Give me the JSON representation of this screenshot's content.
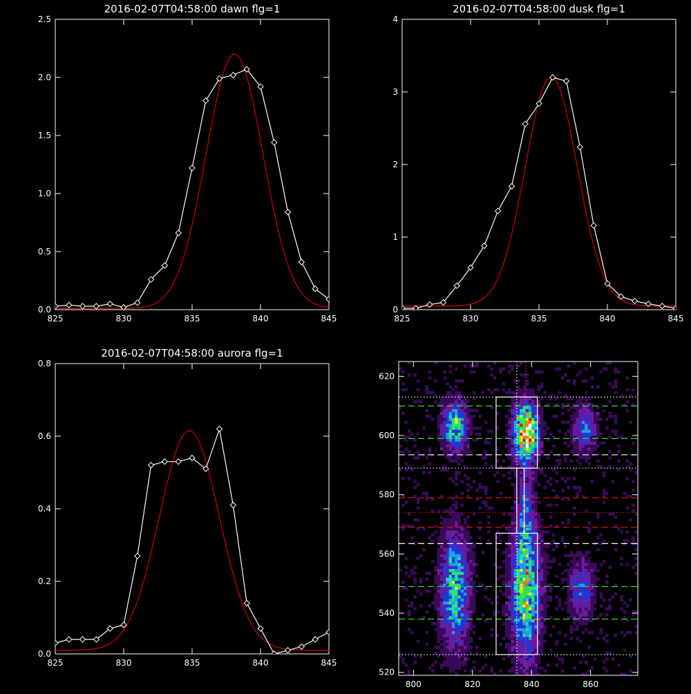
{
  "chart_data": [
    {
      "type": "line",
      "title": "2016-02-07T04:58:00 dawn flg=1",
      "xlim": [
        825,
        845
      ],
      "ylim": [
        0,
        2.5
      ],
      "xticks": [
        "825",
        "830",
        "835",
        "840",
        "845"
      ],
      "yticks": [
        "0.0",
        "0.5",
        "1.0",
        "1.5",
        "2.0",
        "2.5"
      ],
      "xtick_values": [
        825,
        830,
        835,
        840,
        845
      ],
      "ytick_values": [
        0,
        0.5,
        1.0,
        1.5,
        2.0,
        2.5
      ],
      "series": [
        {
          "style": "data",
          "color": "#ffffff",
          "marker": "diamond",
          "x": [
            825,
            826,
            827,
            828,
            829,
            830,
            831,
            832,
            833,
            834,
            835,
            836,
            837,
            838,
            839,
            840,
            841,
            842,
            843,
            844,
            845
          ],
          "y": [
            0.03,
            0.04,
            0.03,
            0.03,
            0.05,
            0.02,
            0.06,
            0.26,
            0.38,
            0.66,
            1.22,
            1.8,
            1.99,
            2.02,
            2.07,
            1.92,
            1.44,
            0.84,
            0.41,
            0.18,
            0.09
          ]
        },
        {
          "style": "fit",
          "color": "#cc0000",
          "gauss": {
            "a": 2.19,
            "mu": 838.1,
            "sigma": 2.08,
            "c": 0.01
          }
        }
      ]
    },
    {
      "type": "line",
      "title": "2016-02-07T04:58:00 dusk flg=1",
      "xlim": [
        825,
        845
      ],
      "ylim": [
        0,
        4
      ],
      "xticks": [
        "825",
        "830",
        "835",
        "840",
        "845"
      ],
      "yticks": [
        "0",
        "1",
        "2",
        "3",
        "4"
      ],
      "xtick_values": [
        825,
        830,
        835,
        840,
        845
      ],
      "ytick_values": [
        0,
        1,
        2,
        3,
        4
      ],
      "series": [
        {
          "style": "data",
          "color": "#ffffff",
          "marker": "diamond",
          "x": [
            825,
            826,
            827,
            828,
            829,
            830,
            831,
            832,
            833,
            834,
            835,
            836,
            837,
            838,
            839,
            840,
            841,
            842,
            843,
            844,
            845
          ],
          "y": [
            0.02,
            0.02,
            0.07,
            0.1,
            0.33,
            0.58,
            0.88,
            1.36,
            1.7,
            2.56,
            2.84,
            3.2,
            3.15,
            2.24,
            1.16,
            0.36,
            0.18,
            0.12,
            0.08,
            0.05,
            0.02
          ]
        },
        {
          "style": "fit",
          "color": "#cc0000",
          "gauss": {
            "a": 3.16,
            "mu": 835.9,
            "sigma": 1.9,
            "c": 0.05
          }
        }
      ]
    },
    {
      "type": "line",
      "title": "2016-02-07T04:58:00 aurora flg=1",
      "xlim": [
        825,
        845
      ],
      "ylim": [
        0,
        0.8
      ],
      "xticks": [
        "825",
        "830",
        "835",
        "840",
        "845"
      ],
      "yticks": [
        "0.0",
        "0.2",
        "0.4",
        "0.6",
        "0.8"
      ],
      "xtick_values": [
        825,
        830,
        835,
        840,
        845
      ],
      "ytick_values": [
        0,
        0.2,
        0.4,
        0.6,
        0.8
      ],
      "series": [
        {
          "style": "data",
          "color": "#ffffff",
          "marker": "diamond",
          "x": [
            825,
            826,
            827,
            828,
            829,
            830,
            831,
            832,
            833,
            834,
            835,
            836,
            837,
            838,
            839,
            840,
            841,
            842,
            843,
            844,
            845
          ],
          "y": [
            0.03,
            0.04,
            0.04,
            0.04,
            0.07,
            0.08,
            0.27,
            0.52,
            0.53,
            0.53,
            0.54,
            0.51,
            0.62,
            0.41,
            0.14,
            0.07,
            0.0,
            0.01,
            0.02,
            0.04,
            0.06
          ]
        },
        {
          "style": "fit",
          "color": "#cc0000",
          "gauss": {
            "a": 0.605,
            "mu": 834.8,
            "sigma": 2.2,
            "c": 0.01
          }
        }
      ]
    },
    {
      "type": "heatmap",
      "title": "",
      "xlim": [
        795,
        876
      ],
      "ylim": [
        519,
        625
      ],
      "xticks": [
        "800",
        "820",
        "840",
        "860"
      ],
      "yticks": [
        "520",
        "540",
        "560",
        "580",
        "600",
        "620"
      ],
      "xtick_values": [
        800,
        820,
        840,
        860
      ],
      "ytick_values": [
        520,
        540,
        560,
        580,
        600,
        620
      ],
      "colormap": [
        "#000000",
        "#3a0a5a",
        "#6a1aa0",
        "#1a3adc",
        "#1aa0e6",
        "#20e0a0",
        "#30f030",
        "#e0f020",
        "#f08010",
        "#f01010",
        "#ffffff"
      ],
      "blobs": [
        {
          "x": 814,
          "y": 603,
          "sx": 2.5,
          "sy": 5,
          "amp": 0.55
        },
        {
          "x": 814,
          "y": 548,
          "sx": 3,
          "sy": 12,
          "amp": 0.5
        },
        {
          "x": 838,
          "y": 601,
          "sx": 2.5,
          "sy": 6,
          "amp": 1.0
        },
        {
          "x": 838,
          "y": 548,
          "sx": 3,
          "sy": 14,
          "amp": 0.65
        },
        {
          "x": 838,
          "y": 575,
          "sx": 1.5,
          "sy": 9,
          "amp": 0.25
        },
        {
          "x": 858,
          "y": 602,
          "sx": 2.5,
          "sy": 5,
          "amp": 0.3
        },
        {
          "x": 857,
          "y": 548,
          "sx": 2.5,
          "sy": 6,
          "amp": 0.3
        }
      ],
      "boxes": [
        {
          "x0": 828,
          "x1": 842,
          "y0": 589,
          "y1": 613
        },
        {
          "x0": 835,
          "x1": 837.5,
          "y0": 567,
          "y1": 589
        },
        {
          "x0": 828,
          "x1": 842,
          "y0": 526,
          "y1": 567
        }
      ],
      "hlines": [
        {
          "y": 613,
          "color": "#ffffff",
          "dash": "dot"
        },
        {
          "y": 610,
          "color": "#33dd33",
          "dash": "dash"
        },
        {
          "y": 599,
          "color": "#33dd33",
          "dash": "dash"
        },
        {
          "y": 593.5,
          "color": "#ffffff",
          "dash": "dash"
        },
        {
          "y": 589,
          "color": "#ffffff",
          "dash": "dot"
        },
        {
          "y": 579,
          "color": "#dd1111",
          "dash": "dash"
        },
        {
          "y": 574,
          "color": "#dd1111",
          "dash": "dot"
        },
        {
          "y": 569,
          "color": "#dd1111",
          "dash": "dash"
        },
        {
          "y": 563.5,
          "color": "#ffffff",
          "dash": "dash"
        },
        {
          "y": 549,
          "color": "#33dd33",
          "dash": "dash"
        },
        {
          "y": 538,
          "color": "#33dd33",
          "dash": "dash"
        },
        {
          "y": 526,
          "color": "#ffffff",
          "dash": "dot"
        }
      ],
      "vlines": [
        {
          "x": 835,
          "color": "#ffffff",
          "dash": "dot"
        },
        {
          "x": 838,
          "color": "#dd3399",
          "dash": "dot"
        }
      ]
    }
  ]
}
